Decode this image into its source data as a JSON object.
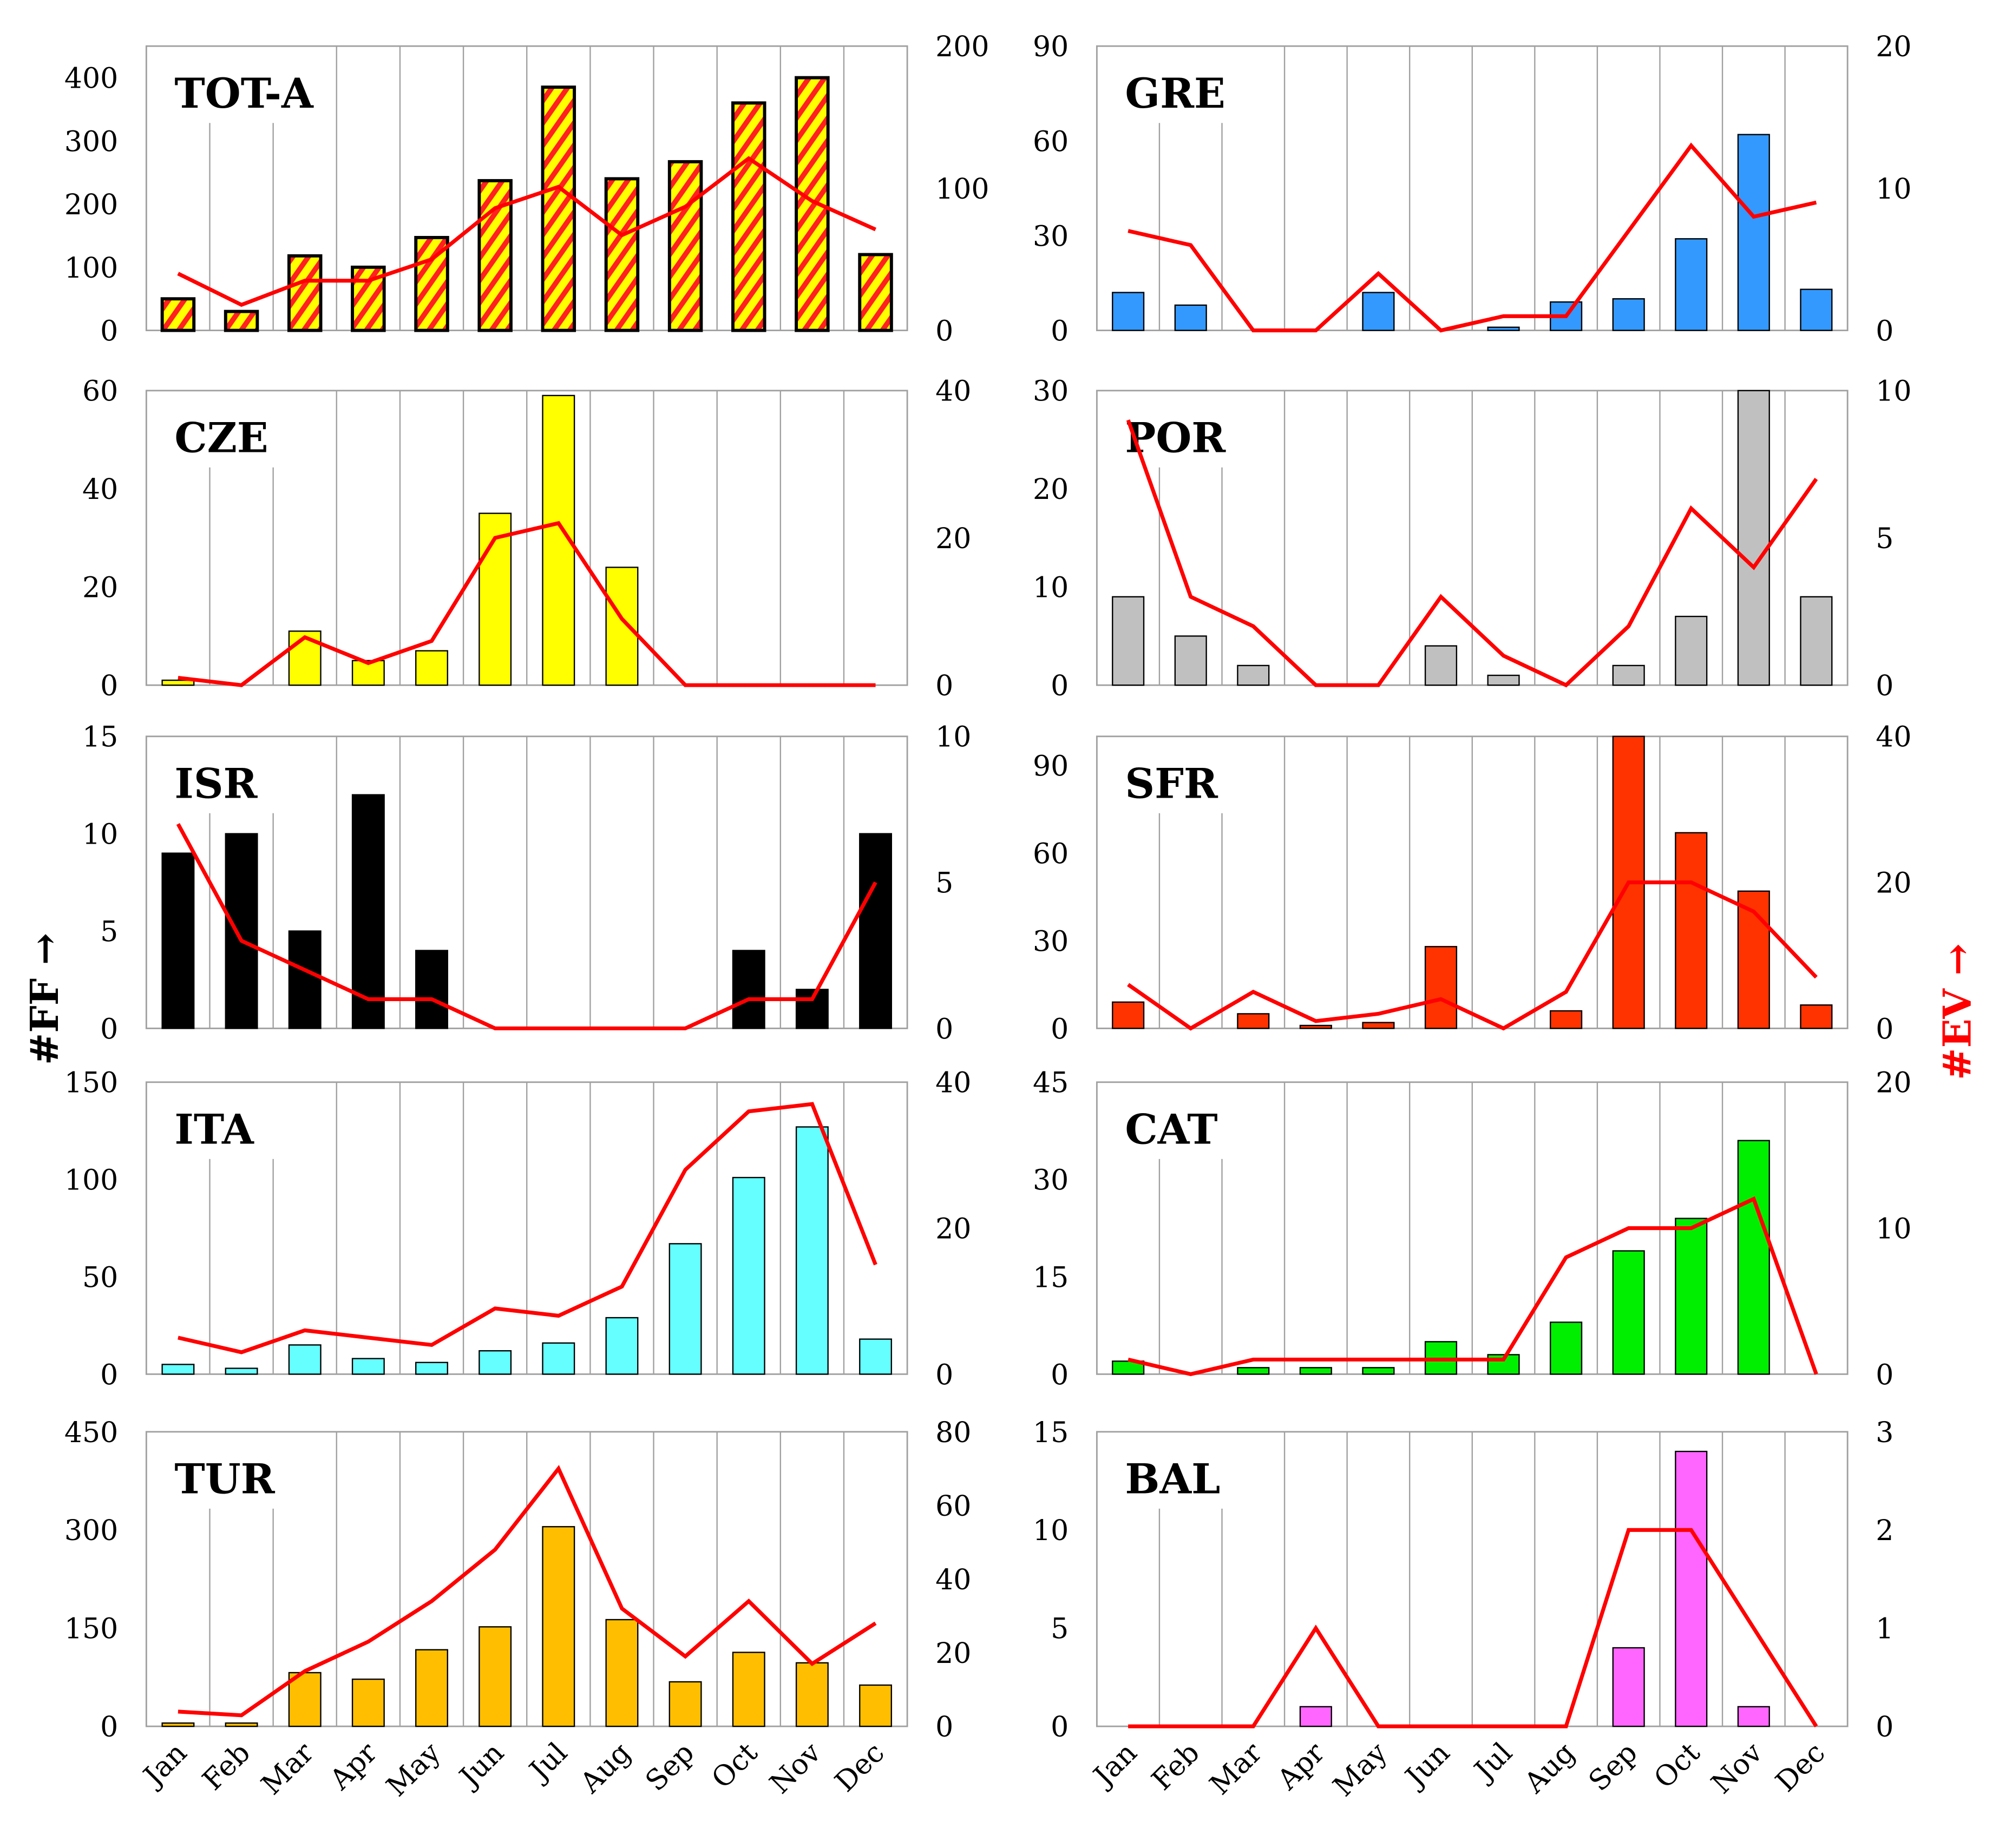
{
  "months": [
    "Jan",
    "Feb",
    "Mar",
    "Apr",
    "May",
    "Jun",
    "Jul",
    "Aug",
    "Sep",
    "Oct",
    "Nov",
    "Dec"
  ],
  "left_axis_title": "#FF →",
  "right_axis_title": "#EV →",
  "colors": {
    "line": "#ff0000",
    "grid": "#a0a0a0",
    "ev_title": "#ff0000"
  },
  "chart_data": [
    {
      "type": "bar+line",
      "title": "TOT-A",
      "color": "hatch",
      "ylim": [
        0,
        450
      ],
      "yticks": [
        0,
        100,
        200,
        300,
        400
      ],
      "y2lim": [
        0,
        200
      ],
      "y2ticks": [
        0,
        100,
        200
      ],
      "ff": [
        50,
        30,
        118,
        100,
        147,
        237,
        385,
        240,
        267,
        360,
        400,
        120
      ],
      "ev": [
        40,
        18,
        35,
        35,
        50,
        86,
        101,
        67,
        87,
        121,
        91,
        71
      ]
    },
    {
      "type": "bar+line",
      "title": "GRE",
      "color": "#3399ff",
      "ylim": [
        0,
        90
      ],
      "yticks": [
        0,
        30,
        60,
        90
      ],
      "y2lim": [
        0,
        20
      ],
      "y2ticks": [
        0,
        10,
        20
      ],
      "ff": [
        12,
        8,
        0,
        0,
        12,
        0,
        1,
        9,
        10,
        29,
        62,
        13
      ],
      "ev": [
        7,
        6,
        0,
        0,
        4,
        0,
        1,
        1,
        7,
        13,
        8,
        9
      ]
    },
    {
      "type": "bar+line",
      "title": "CZE",
      "color": "#ffff00",
      "ylim": [
        0,
        60
      ],
      "yticks": [
        0,
        20,
        40,
        60
      ],
      "y2lim": [
        0,
        40
      ],
      "y2ticks": [
        0,
        20,
        40
      ],
      "ff": [
        1,
        0,
        11,
        5,
        7,
        35,
        59,
        24,
        0,
        0,
        0,
        0
      ],
      "ev": [
        1,
        0,
        6.5,
        3,
        6,
        20,
        22,
        9,
        0,
        0,
        0,
        0
      ]
    },
    {
      "type": "bar+line",
      "title": "POR",
      "color": "#c0c0c0",
      "ylim": [
        0,
        30
      ],
      "yticks": [
        0,
        10,
        20,
        30
      ],
      "y2lim": [
        0,
        10
      ],
      "y2ticks": [
        0,
        5,
        10
      ],
      "ff": [
        9,
        5,
        2,
        0,
        0,
        4,
        1,
        0,
        2,
        7,
        30,
        9
      ],
      "ev": [
        9,
        3,
        2,
        0,
        0,
        3,
        1,
        0,
        2,
        6,
        4,
        7
      ]
    },
    {
      "type": "bar+line",
      "title": "ISR",
      "color": "#000000",
      "ylim": [
        0,
        15
      ],
      "yticks": [
        0,
        5,
        10,
        15
      ],
      "y2lim": [
        0,
        10
      ],
      "y2ticks": [
        0,
        5,
        10
      ],
      "ff": [
        9,
        10,
        5,
        12,
        4,
        0,
        0,
        0,
        0,
        4,
        2,
        10
      ],
      "ev": [
        7,
        3,
        2,
        1,
        1,
        0,
        0,
        0,
        0,
        1,
        1,
        5
      ]
    },
    {
      "type": "bar+line",
      "title": "SFR",
      "color": "#ff3300",
      "ylim": [
        0,
        100
      ],
      "yticks": [
        0,
        30,
        60,
        90
      ],
      "y2lim": [
        0,
        40
      ],
      "y2ticks": [
        0,
        20,
        40
      ],
      "ff": [
        9,
        0,
        5,
        1,
        2,
        28,
        0,
        6,
        100,
        67,
        47,
        8
      ],
      "ev": [
        6,
        0,
        5,
        1,
        2,
        4,
        0,
        5,
        20,
        20,
        16,
        7
      ]
    },
    {
      "type": "bar+line",
      "title": "ITA",
      "color": "#66ffff",
      "ylim": [
        0,
        150
      ],
      "yticks": [
        0,
        50,
        100,
        150
      ],
      "y2lim": [
        0,
        40
      ],
      "y2ticks": [
        0,
        20,
        40
      ],
      "ff": [
        5,
        3,
        15,
        8,
        6,
        12,
        16,
        29,
        67,
        101,
        127,
        18
      ],
      "ev": [
        5,
        3,
        6,
        5,
        4,
        9,
        8,
        12,
        28,
        36,
        37,
        15
      ]
    },
    {
      "type": "bar+line",
      "title": "CAT",
      "color": "#00ee00",
      "ylim": [
        0,
        45
      ],
      "yticks": [
        0,
        15,
        30,
        45
      ],
      "y2lim": [
        0,
        20
      ],
      "y2ticks": [
        0,
        10,
        20
      ],
      "ff": [
        2,
        0,
        1,
        1,
        1,
        5,
        3,
        8,
        19,
        24,
        36,
        0
      ],
      "ev": [
        1,
        0,
        1,
        1,
        1,
        1,
        1,
        8,
        10,
        10,
        12,
        0
      ]
    },
    {
      "type": "bar+line",
      "title": "TUR",
      "color": "#ffbf00",
      "ylim": [
        0,
        450
      ],
      "yticks": [
        0,
        150,
        300,
        450
      ],
      "y2lim": [
        0,
        80
      ],
      "y2ticks": [
        0,
        20,
        40,
        60,
        80
      ],
      "ff": [
        5,
        5,
        82,
        72,
        117,
        152,
        305,
        163,
        68,
        113,
        97,
        63
      ],
      "ev": [
        4,
        3,
        15,
        23,
        34,
        48,
        70,
        32,
        19,
        34,
        17,
        28
      ]
    },
    {
      "type": "bar+line",
      "title": "BAL",
      "color": "#ff66ff",
      "ylim": [
        0,
        15
      ],
      "yticks": [
        0,
        5,
        10,
        15
      ],
      "y2lim": [
        0,
        3
      ],
      "y2ticks": [
        0,
        1,
        2,
        3
      ],
      "ff": [
        0,
        0,
        0,
        1,
        0,
        0,
        0,
        0,
        4,
        14,
        1,
        0
      ],
      "ev": [
        0,
        0,
        0,
        1,
        0,
        0,
        0,
        0,
        2,
        2,
        1,
        0
      ]
    }
  ]
}
